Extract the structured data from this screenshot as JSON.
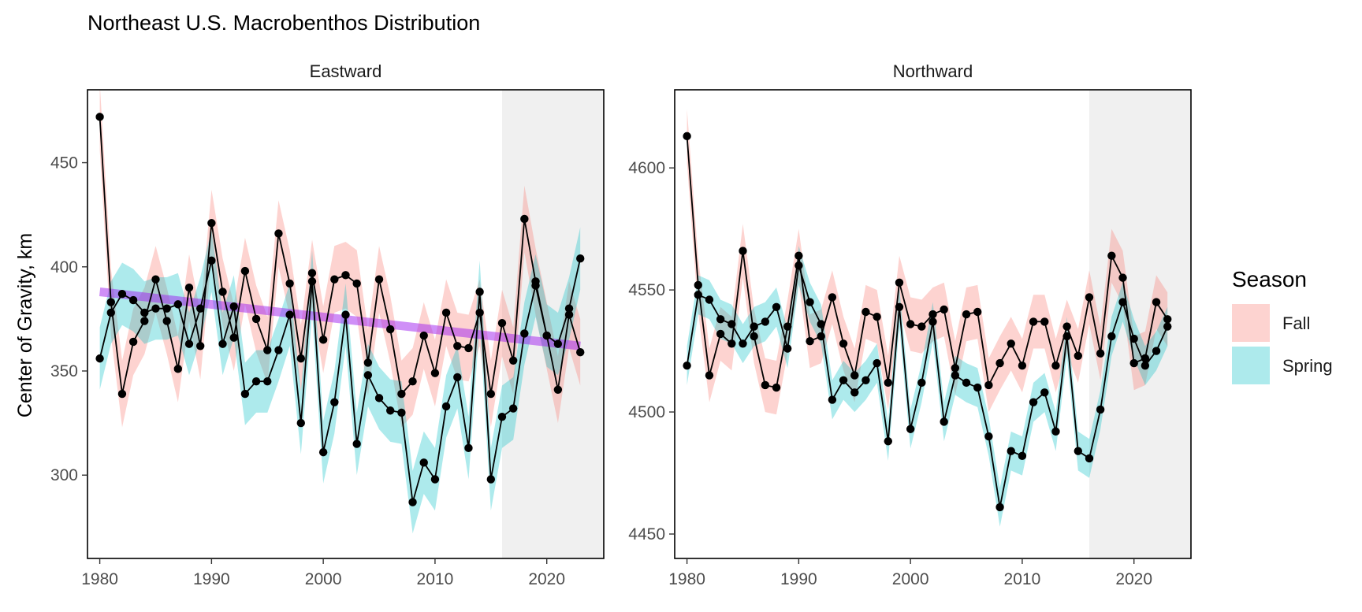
{
  "chart_data": {
    "type": "line",
    "title": "Northeast U.S. Macrobenthos Distribution",
    "ylabel": "Center of Gravity, km",
    "xlabel": "",
    "x_ticks": [
      1980,
      1990,
      2000,
      2010,
      2020
    ],
    "legend": {
      "title": "Season",
      "position": "right",
      "entries": [
        {
          "name": "Fall",
          "color": "#F8766D"
        },
        {
          "name": "Spring",
          "color": "#00BFC4"
        }
      ]
    },
    "colors": {
      "fall_band": "#F8766D",
      "spring_band": "#00BFC4",
      "trend": "#A020F0",
      "recent_shade": "#f0f0f0",
      "points": "#000000"
    },
    "panels": [
      {
        "name": "Eastward",
        "xlim": [
          1978.9,
          2025.1
        ],
        "ylim": [
          260,
          485
        ],
        "y_ticks": [
          300,
          350,
          400,
          450
        ],
        "shade_from": 2016,
        "trend": {
          "x": [
            1980,
            2023
          ],
          "y": [
            388,
            362
          ]
        },
        "series": [
          {
            "name": "Fall",
            "x": [
              1980,
              1981,
              1982,
              1983,
              1984,
              1985,
              1986,
              1987,
              1988,
              1989,
              1990,
              1991,
              1992,
              1993,
              1994,
              1995,
              1996,
              1997,
              1998,
              1999,
              2000,
              2001,
              2002,
              2003,
              2004,
              2005,
              2006,
              2007,
              2008,
              2009,
              2010,
              2011,
              2012,
              2013,
              2014,
              2015,
              2016,
              2017,
              2018,
              2019,
              2020,
              2021,
              2022,
              2023
            ],
            "y": [
              472,
              383,
              339,
              364,
              374,
              394,
              374,
              351,
              390,
              362,
              421,
              388,
              366,
              398,
              375,
              360,
              416,
              392,
              356,
              397,
              365,
              394,
              396,
              392,
              354,
              394,
              370,
              339,
              345,
              367,
              349,
              378,
              362,
              361,
              378,
              339,
              373,
              355,
              423,
              393,
              367,
              341,
              377,
              359
            ]
          },
          {
            "name": "Spring",
            "x": [
              1980,
              1981,
              1982,
              1983,
              1984,
              1985,
              1986,
              1987,
              1988,
              1989,
              1990,
              1991,
              1992,
              1993,
              1994,
              1995,
              1996,
              1997,
              1998,
              1999,
              2000,
              2001,
              2002,
              2003,
              2004,
              2005,
              2006,
              2007,
              2008,
              2009,
              2010,
              2011,
              2012,
              2013,
              2014,
              2015,
              2016,
              2017,
              2018,
              2019,
              2020,
              2021,
              2022,
              2023
            ],
            "y": [
              356,
              378,
              387,
              384,
              378,
              380,
              380,
              382,
              363,
              380,
              403,
              363,
              381,
              339,
              345,
              345,
              360,
              377,
              325,
              393,
              311,
              335,
              377,
              315,
              348,
              337,
              331,
              330,
              287,
              306,
              298,
              333,
              347,
              313,
              388,
              298,
              328,
              332,
              368,
              391,
              367,
              363,
              380,
              404
            ]
          }
        ]
      },
      {
        "name": "Northward",
        "xlim": [
          1978.9,
          2025.1
        ],
        "ylim": [
          4440,
          4632
        ],
        "y_ticks": [
          4450,
          4500,
          4550,
          4600
        ],
        "shade_from": 2016,
        "series": [
          {
            "name": "Fall",
            "x": [
              1980,
              1981,
              1982,
              1983,
              1984,
              1985,
              1986,
              1987,
              1988,
              1989,
              1990,
              1991,
              1992,
              1993,
              1994,
              1995,
              1996,
              1997,
              1998,
              1999,
              2000,
              2001,
              2002,
              2003,
              2004,
              2005,
              2006,
              2007,
              2008,
              2009,
              2010,
              2011,
              2012,
              2013,
              2014,
              2015,
              2016,
              2017,
              2018,
              2019,
              2020,
              2021,
              2022,
              2023
            ],
            "y": [
              4613,
              4552,
              4515,
              4532,
              4528,
              4566,
              4531,
              4511,
              4510,
              4535,
              4564,
              4529,
              4531,
              4547,
              4528,
              4515,
              4541,
              4539,
              4512,
              4553,
              4536,
              4535,
              4540,
              4542,
              4518,
              4540,
              4541,
              4511,
              4520,
              4528,
              4519,
              4537,
              4537,
              4519,
              4535,
              4523,
              4547,
              4524,
              4564,
              4555,
              4520,
              4522,
              4545,
              4538
            ]
          },
          {
            "name": "Spring",
            "x": [
              1980,
              1981,
              1982,
              1983,
              1984,
              1985,
              1986,
              1987,
              1988,
              1989,
              1990,
              1991,
              1992,
              1993,
              1994,
              1995,
              1996,
              1997,
              1998,
              1999,
              2000,
              2001,
              2002,
              2003,
              2004,
              2005,
              2006,
              2007,
              2008,
              2009,
              2010,
              2011,
              2012,
              2013,
              2014,
              2015,
              2016,
              2017,
              2018,
              2019,
              2020,
              2021,
              2022,
              2023
            ],
            "y": [
              4519,
              4548,
              4546,
              4538,
              4536,
              4528,
              4535,
              4537,
              4543,
              4526,
              4560,
              4545,
              4536,
              4505,
              4513,
              4508,
              4513,
              4520,
              4488,
              4543,
              4493,
              4512,
              4537,
              4496,
              4515,
              4512,
              4510,
              4490,
              4461,
              4484,
              4482,
              4504,
              4508,
              4492,
              4531,
              4484,
              4481,
              4501,
              4531,
              4545,
              4530,
              4519,
              4525,
              4535
            ]
          }
        ]
      }
    ]
  }
}
